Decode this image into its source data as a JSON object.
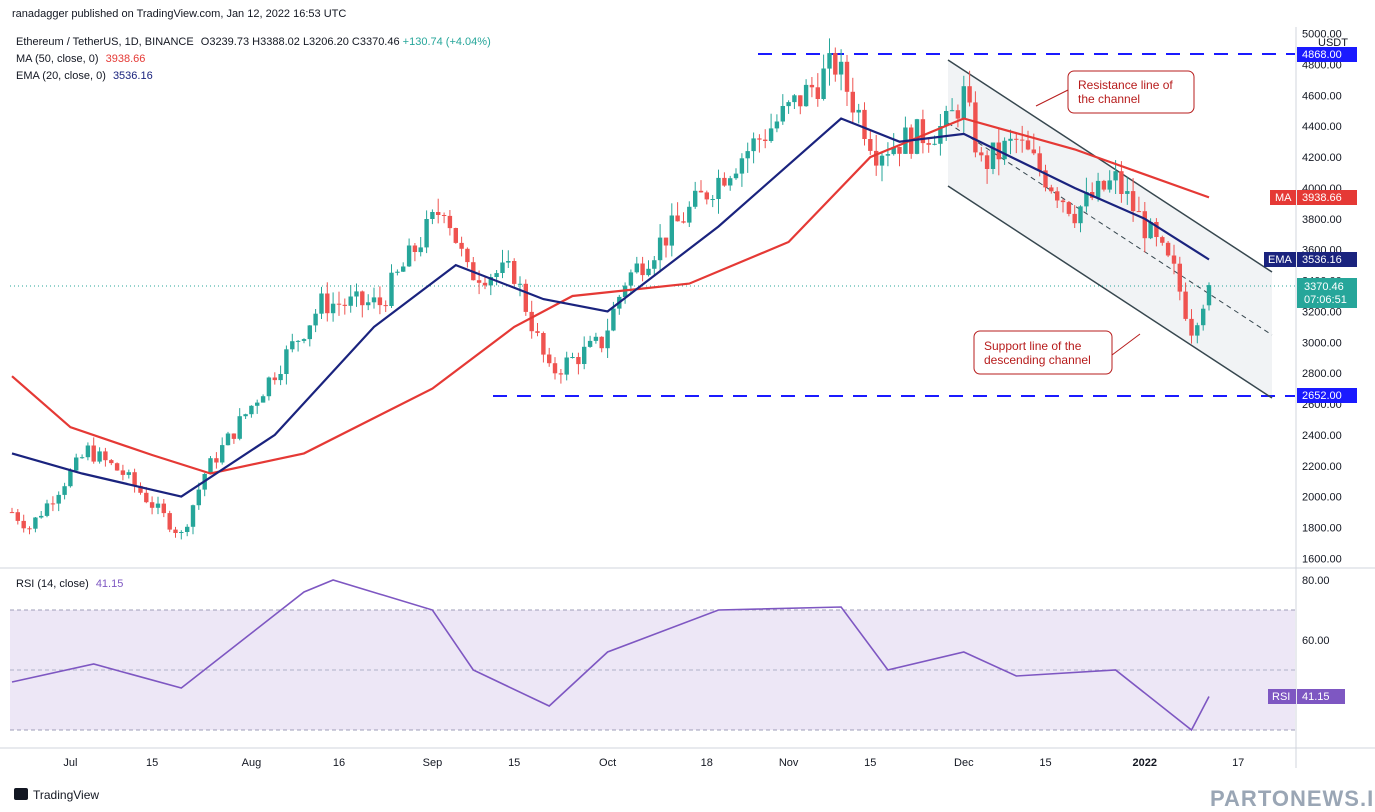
{
  "header": {
    "published": "ranadagger published on TradingView.com, Jan 12, 2022 16:53 UTC",
    "symbol": "Ethereum / TetherUS, 1D, BINANCE",
    "ohlc": {
      "O": "O3239.73",
      "H": "H3388.02",
      "L": "L3206.20",
      "C": "C3370.46",
      "change": "+130.74 (+4.04%)"
    },
    "ma": {
      "label": "MA (50, close, 0)",
      "value": "3938.66"
    },
    "ema": {
      "label": "EMA (20, close, 0)",
      "value": "3536.16"
    },
    "rsi": {
      "label": "RSI (14, close)",
      "value": "41.15"
    }
  },
  "price_axis": {
    "currency_l1": "USDT",
    "ticks": [
      "5000.00",
      "4800.00",
      "4600.00",
      "4400.00",
      "4200.00",
      "4000.00",
      "3800.00",
      "3600.00",
      "3400.00",
      "3200.00",
      "3000.00",
      "2800.00",
      "2600.00",
      "2400.00",
      "2200.00",
      "2000.00",
      "1800.00",
      "1600.00"
    ]
  },
  "rsi_axis": {
    "ticks": [
      "80.00",
      "60.00"
    ]
  },
  "time_axis": {
    "ticks": [
      "Jul",
      "15",
      "Aug",
      "16",
      "Sep",
      "15",
      "Oct",
      "18",
      "Nov",
      "15",
      "Dec",
      "15",
      "2022",
      "17"
    ]
  },
  "badges": {
    "top_level": "4868.00",
    "bottom_level": "2652.00",
    "ma_tag": "MA",
    "ma_value": "3938.66",
    "ema_tag": "EMA",
    "ema_value": "3536.16",
    "last_price": "3370.46",
    "countdown": "07:06:51",
    "rsi_tag": "RSI",
    "rsi_value": "41.15"
  },
  "annotations": {
    "resistance_l1": "Resistance line of",
    "resistance_l2": "the channel",
    "support_l1": "Support line of the",
    "support_l2": "descending channel"
  },
  "footer": {
    "brand": "TradingView",
    "watermark": "PARTONEWS.IR"
  },
  "colors": {
    "up": "#26a69a",
    "down": "#ef5350",
    "ma": "#e53935",
    "ema": "#1a237e",
    "rsi": "#7e57c2",
    "rsi_band": "#ede7f6",
    "level_line": "#1a1aff",
    "channel": "#37474f",
    "annotation": "#b71c1c"
  },
  "chart_data": [
    {
      "type": "candlestick",
      "title": "Ethereum / TetherUS, 1D, BINANCE",
      "interval": "1D",
      "x_range": [
        "2021-06-21",
        "2022-01-12"
      ],
      "ylim": [
        1500,
        5050
      ],
      "y_unit": "USDT",
      "last_candle": {
        "date": "2022-01-12",
        "open": 3239.73,
        "high": 3388.02,
        "low": 3206.2,
        "close": 3370.46
      },
      "ohlc_path": [
        [
          "2021-06-21",
          1900
        ],
        [
          "2021-06-24",
          1800
        ],
        [
          "2021-07-04",
          2300
        ],
        [
          "2021-07-10",
          2150
        ],
        [
          "2021-07-20",
          1750
        ],
        [
          "2021-07-24",
          2150
        ],
        [
          "2021-08-13",
          3250
        ],
        [
          "2021-08-23",
          3250
        ],
        [
          "2021-09-03",
          3900
        ],
        [
          "2021-09-07",
          3450
        ],
        [
          "2021-09-15",
          3450
        ],
        [
          "2021-09-21",
          2800
        ],
        [
          "2021-09-30",
          3000
        ],
        [
          "2021-10-04",
          3400
        ],
        [
          "2021-10-21",
          4100
        ],
        [
          "2021-11-09",
          4800
        ],
        [
          "2021-11-16",
          4250
        ],
        [
          "2021-11-28",
          4400
        ],
        [
          "2021-12-01",
          4600
        ],
        [
          "2021-12-04",
          4150
        ],
        [
          "2021-12-10",
          4300
        ],
        [
          "2021-12-20",
          3850
        ],
        [
          "2021-12-27",
          4050
        ],
        [
          "2022-01-06",
          3450
        ],
        [
          "2022-01-09",
          3100
        ],
        [
          "2022-01-12",
          3370.46
        ]
      ],
      "series": [
        {
          "name": "MA (50, close, 0)",
          "values": [
            [
              "2021-06-21",
              2780
            ],
            [
              "2021-07-01",
              2450
            ],
            [
              "2021-07-15",
              2270
            ],
            [
              "2021-07-25",
              2150
            ],
            [
              "2021-08-10",
              2280
            ],
            [
              "2021-09-01",
              2700
            ],
            [
              "2021-09-15",
              3100
            ],
            [
              "2021-09-25",
              3300
            ],
            [
              "2021-10-15",
              3380
            ],
            [
              "2021-11-01",
              3650
            ],
            [
              "2021-11-15",
              4200
            ],
            [
              "2021-12-01",
              4450
            ],
            [
              "2021-12-20",
              4250
            ],
            [
              "2022-01-12",
              3938.66
            ]
          ]
        },
        {
          "name": "EMA (20, close, 0)",
          "values": [
            [
              "2021-06-21",
              2280
            ],
            [
              "2021-07-03",
              2150
            ],
            [
              "2021-07-20",
              2000
            ],
            [
              "2021-08-05",
              2400
            ],
            [
              "2021-08-22",
              3100
            ],
            [
              "2021-09-05",
              3500
            ],
            [
              "2021-09-20",
              3280
            ],
            [
              "2021-10-01",
              3200
            ],
            [
              "2021-10-20",
              3750
            ],
            [
              "2021-11-10",
              4450
            ],
            [
              "2021-11-20",
              4300
            ],
            [
              "2021-12-01",
              4350
            ],
            [
              "2021-12-20",
              4000
            ],
            [
              "2022-01-01",
              3800
            ],
            [
              "2022-01-12",
              3536.16
            ]
          ]
        },
        {
          "name": "RSI (14, close)",
          "values": [
            [
              "2021-06-21",
              46
            ],
            [
              "2021-07-05",
              52
            ],
            [
              "2021-07-20",
              44
            ],
            [
              "2021-08-10",
              76
            ],
            [
              "2021-08-15",
              80
            ],
            [
              "2021-09-01",
              70
            ],
            [
              "2021-09-08",
              50
            ],
            [
              "2021-09-21",
              38
            ],
            [
              "2021-10-01",
              56
            ],
            [
              "2021-10-20",
              70
            ],
            [
              "2021-11-10",
              71
            ],
            [
              "2021-11-18",
              50
            ],
            [
              "2021-12-01",
              56
            ],
            [
              "2021-12-10",
              48
            ],
            [
              "2021-12-27",
              50
            ],
            [
              "2022-01-09",
              30
            ],
            [
              "2022-01-12",
              41.15
            ]
          ]
        }
      ],
      "levels": [
        4868.0,
        2652.0
      ]
    }
  ]
}
